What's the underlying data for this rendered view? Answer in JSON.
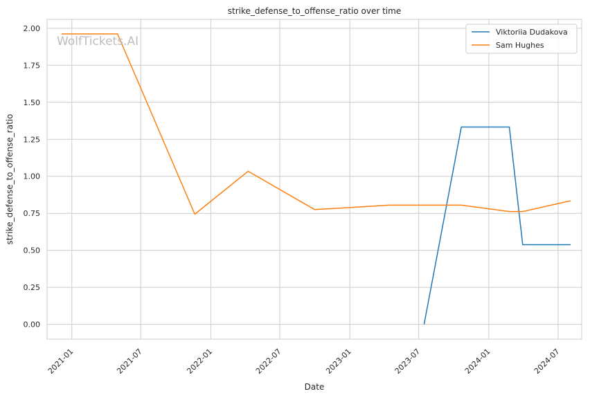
{
  "chart_data": {
    "type": "line",
    "title": "strike_defense_to_offense_ratio over time",
    "xlabel": "Date",
    "ylabel": "strike_defense_to_offense_ratio",
    "watermark": "WolfTickets.AI",
    "x_ticks": [
      "2021-01",
      "2021-07",
      "2022-01",
      "2022-07",
      "2023-01",
      "2023-07",
      "2024-01",
      "2024-07"
    ],
    "y_ticks": [
      "0.00",
      "0.25",
      "0.50",
      "0.75",
      "1.00",
      "1.25",
      "1.50",
      "1.75",
      "2.00"
    ],
    "ylim": [
      -0.1,
      2.06
    ],
    "xlim": [
      "2020-10-28",
      "2024-09-01"
    ],
    "grid": true,
    "legend_position": "top-right",
    "series": [
      {
        "name": "Viktoriia Dudakova",
        "color": "#1f77b4",
        "x": [
          "2023-07-15",
          "2023-10-21",
          "2024-02-24",
          "2024-03-30",
          "2024-08-03"
        ],
        "y": [
          0.0,
          1.333,
          1.333,
          0.538,
          0.538
        ]
      },
      {
        "name": "Sam Hughes",
        "color": "#ff7f0e",
        "x": [
          "2020-12-05",
          "2021-05-01",
          "2021-11-20",
          "2022-04-09",
          "2022-10-01",
          "2023-04-15",
          "2023-10-21",
          "2024-02-24",
          "2024-03-30",
          "2024-08-03"
        ],
        "y": [
          1.962,
          1.962,
          0.744,
          1.034,
          0.775,
          0.805,
          0.805,
          0.762,
          0.762,
          0.835
        ]
      }
    ]
  }
}
